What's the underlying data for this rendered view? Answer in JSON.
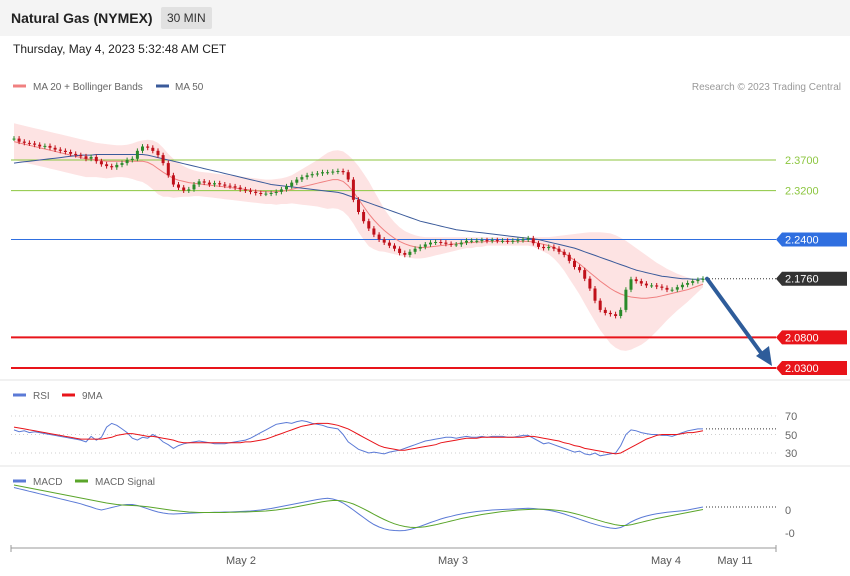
{
  "header": {
    "title": "Natural Gas (NYMEX)",
    "timeframe": "30 MIN",
    "datetime": "Thursday, May 4, 2023 5:32:48 AM CET"
  },
  "legend": {
    "ma20_label": "MA 20 + Bollinger Bands",
    "ma50_label": "MA 50",
    "credit": "Research © 2023 Trading Central"
  },
  "colors": {
    "ma20": "#f08080",
    "band_fill": "#fde3e3",
    "ma50": "#3a5a9a",
    "resistance_green": "#8cc63f",
    "pivot_blue": "#2f6fe0",
    "support_red": "#e8141a",
    "last_price": "#333333",
    "arrow": "#2e5c9a",
    "candle_up": "#2a8a2a",
    "candle_down": "#c0101a",
    "rsi": "#5b7ad6",
    "rsi_ma": "#e8141a",
    "macd": "#5b7ad6",
    "macd_signal": "#5aa52a"
  },
  "levels": [
    {
      "name": "resistance-2",
      "value": "2.3700",
      "kind": "green"
    },
    {
      "name": "resistance-1",
      "value": "2.3200",
      "kind": "green"
    },
    {
      "name": "pivot",
      "value": "2.2400",
      "kind": "blue"
    },
    {
      "name": "last-price",
      "value": "2.1760",
      "kind": "last"
    },
    {
      "name": "support-1",
      "value": "2.0800",
      "kind": "red"
    },
    {
      "name": "support-2",
      "value": "2.0300",
      "kind": "red"
    }
  ],
  "rsi_panel": {
    "rsi_label": "RSI",
    "ma_label": "9MA",
    "ticks": [
      "70",
      "50",
      "30"
    ]
  },
  "macd_panel": {
    "macd_label": "MACD",
    "signal_label": "MACD Signal",
    "ticks": [
      "0",
      "-0"
    ]
  },
  "x_axis": {
    "ticks": [
      "May 2",
      "May 3",
      "May 4",
      "May 11"
    ]
  },
  "chart_data": {
    "type": "candlestick",
    "y_range": [
      2.0,
      2.44
    ],
    "x_ticks": [
      "May 2",
      "May 3",
      "May 4",
      "May 11"
    ],
    "closes": [
      2.405,
      2.4,
      2.398,
      2.397,
      2.395,
      2.392,
      2.393,
      2.39,
      2.387,
      2.385,
      2.383,
      2.38,
      2.378,
      2.376,
      2.372,
      2.375,
      2.368,
      2.363,
      2.36,
      2.358,
      2.362,
      2.365,
      2.37,
      2.372,
      2.385,
      2.392,
      2.39,
      2.385,
      2.378,
      2.365,
      2.345,
      2.33,
      2.325,
      2.32,
      2.322,
      2.33,
      2.335,
      2.333,
      2.33,
      2.332,
      2.33,
      2.328,
      2.327,
      2.325,
      2.322,
      2.32,
      2.318,
      2.316,
      2.315,
      2.315,
      2.316,
      2.318,
      2.322,
      2.327,
      2.333,
      2.338,
      2.342,
      2.345,
      2.347,
      2.348,
      2.35,
      2.35,
      2.351,
      2.352,
      2.35,
      2.338,
      2.305,
      2.285,
      2.27,
      2.258,
      2.248,
      2.24,
      2.235,
      2.23,
      2.225,
      2.218,
      2.215,
      2.22,
      2.225,
      2.228,
      2.232,
      2.235,
      2.236,
      2.235,
      2.233,
      2.232,
      2.232,
      2.235,
      2.238,
      2.238,
      2.238,
      2.239,
      2.238,
      2.239,
      2.238,
      2.238,
      2.237,
      2.238,
      2.239,
      2.24,
      2.242,
      2.234,
      2.228,
      2.226,
      2.228,
      2.225,
      2.22,
      2.215,
      2.205,
      2.195,
      2.19,
      2.176,
      2.16,
      2.14,
      2.125,
      2.12,
      2.118,
      2.115,
      2.125,
      2.158,
      2.175,
      2.172,
      2.168,
      2.165,
      2.165,
      2.163,
      2.161,
      2.158,
      2.158,
      2.162,
      2.166,
      2.169,
      2.172,
      2.174,
      2.176
    ],
    "ma20": [
      2.4,
      2.398,
      2.396,
      2.394,
      2.392,
      2.39,
      2.388,
      2.386,
      2.384,
      2.382,
      2.38,
      2.378,
      2.376,
      2.374,
      2.372,
      2.371,
      2.37,
      2.369,
      2.368,
      2.368,
      2.368,
      2.368,
      2.368,
      2.368,
      2.368,
      2.368,
      2.366,
      2.362,
      2.356,
      2.35,
      2.345,
      2.34,
      2.337,
      2.335,
      2.333,
      2.332,
      2.331,
      2.33,
      2.329,
      2.328,
      2.327,
      2.326,
      2.325,
      2.324,
      2.323,
      2.322,
      2.321,
      2.32,
      2.319,
      2.318,
      2.318,
      2.318,
      2.319,
      2.32,
      2.322,
      2.324,
      2.326,
      2.328,
      2.33,
      2.332,
      2.334,
      2.336,
      2.338,
      2.338,
      2.335,
      2.328,
      2.318,
      2.306,
      2.294,
      2.282,
      2.272,
      2.263,
      2.255,
      2.248,
      2.242,
      2.237,
      2.233,
      2.23,
      2.228,
      2.227,
      2.227,
      2.228,
      2.229,
      2.23,
      2.231,
      2.232,
      2.233,
      2.234,
      2.235,
      2.235,
      2.236,
      2.236,
      2.237,
      2.237,
      2.237,
      2.237,
      2.237,
      2.237,
      2.237,
      2.237,
      2.237,
      2.236,
      2.234,
      2.232,
      2.23,
      2.227,
      2.223,
      2.218,
      2.212,
      2.206,
      2.2,
      2.193,
      2.186,
      2.179,
      2.172,
      2.166,
      2.16,
      2.155,
      2.151,
      2.148,
      2.146,
      2.145,
      2.144,
      2.144,
      2.145,
      2.146,
      2.148,
      2.15,
      2.152,
      2.154,
      2.156,
      2.158,
      2.161,
      2.164,
      2.167
    ],
    "band_upper": [
      2.43,
      2.428,
      2.426,
      2.424,
      2.422,
      2.42,
      2.418,
      2.416,
      2.414,
      2.412,
      2.41,
      2.408,
      2.406,
      2.404,
      2.402,
      2.4,
      2.398,
      2.397,
      2.396,
      2.395,
      2.394,
      2.394,
      2.395,
      2.397,
      2.4,
      2.402,
      2.403,
      2.402,
      2.398,
      2.39,
      2.38,
      2.372,
      2.365,
      2.36,
      2.356,
      2.353,
      2.351,
      2.35,
      2.349,
      2.348,
      2.347,
      2.346,
      2.345,
      2.344,
      2.343,
      2.342,
      2.341,
      2.34,
      2.339,
      2.338,
      2.338,
      2.339,
      2.34,
      2.342,
      2.345,
      2.35,
      2.355,
      2.36,
      2.365,
      2.37,
      2.376,
      2.382,
      2.385,
      2.386,
      2.384,
      2.378,
      2.37,
      2.36,
      2.348,
      2.335,
      2.32,
      2.305,
      2.29,
      2.278,
      2.268,
      2.26,
      2.254,
      2.25,
      2.247,
      2.245,
      2.244,
      2.244,
      2.244,
      2.244,
      2.244,
      2.244,
      2.244,
      2.244,
      2.244,
      2.244,
      2.244,
      2.244,
      2.244,
      2.244,
      2.244,
      2.244,
      2.244,
      2.244,
      2.244,
      2.244,
      2.244,
      2.244,
      2.244,
      2.244,
      2.244,
      2.245,
      2.246,
      2.247,
      2.248,
      2.249,
      2.25,
      2.251,
      2.252,
      2.252,
      2.252,
      2.251,
      2.25,
      2.247,
      2.243,
      2.238,
      2.232,
      2.226,
      2.22,
      2.214,
      2.208,
      2.202,
      2.197,
      2.192,
      2.188,
      2.184,
      2.181,
      2.178,
      2.176,
      2.174,
      2.172
    ],
    "band_lower": [
      2.37,
      2.368,
      2.366,
      2.364,
      2.362,
      2.36,
      2.358,
      2.356,
      2.354,
      2.352,
      2.35,
      2.348,
      2.346,
      2.344,
      2.342,
      2.342,
      2.342,
      2.341,
      2.34,
      2.341,
      2.342,
      2.342,
      2.341,
      2.339,
      2.336,
      2.334,
      2.329,
      2.322,
      2.314,
      2.31,
      2.31,
      2.308,
      2.309,
      2.31,
      2.31,
      2.311,
      2.311,
      2.31,
      2.309,
      2.308,
      2.307,
      2.306,
      2.305,
      2.304,
      2.303,
      2.302,
      2.301,
      2.3,
      2.299,
      2.298,
      2.298,
      2.297,
      2.298,
      2.298,
      2.299,
      2.298,
      2.297,
      2.296,
      2.295,
      2.294,
      2.292,
      2.29,
      2.291,
      2.29,
      2.286,
      2.278,
      2.266,
      2.252,
      2.24,
      2.229,
      2.224,
      2.221,
      2.22,
      2.218,
      2.216,
      2.214,
      2.212,
      2.21,
      2.209,
      2.209,
      2.21,
      2.212,
      2.214,
      2.216,
      2.218,
      2.22,
      2.222,
      2.224,
      2.226,
      2.226,
      2.228,
      2.228,
      2.23,
      2.23,
      2.23,
      2.23,
      2.23,
      2.23,
      2.23,
      2.23,
      2.23,
      2.228,
      2.224,
      2.22,
      2.216,
      2.209,
      2.2,
      2.189,
      2.176,
      2.163,
      2.15,
      2.135,
      2.12,
      2.106,
      2.092,
      2.081,
      2.07,
      2.063,
      2.059,
      2.058,
      2.06,
      2.064,
      2.068,
      2.074,
      2.082,
      2.09,
      2.099,
      2.108,
      2.116,
      2.124,
      2.131,
      2.138,
      2.146,
      2.154,
      2.162
    ],
    "ma50": [
      2.365,
      2.366,
      2.367,
      2.368,
      2.369,
      2.37,
      2.371,
      2.372,
      2.373,
      2.374,
      2.375,
      2.376,
      2.377,
      2.378,
      2.378,
      2.378,
      2.379,
      2.379,
      2.379,
      2.379,
      2.379,
      2.379,
      2.379,
      2.379,
      2.379,
      2.379,
      2.378,
      2.376,
      2.374,
      2.372,
      2.37,
      2.368,
      2.366,
      2.364,
      2.362,
      2.36,
      2.358,
      2.356,
      2.354,
      2.352,
      2.35,
      2.348,
      2.346,
      2.344,
      2.342,
      2.34,
      2.338,
      2.336,
      2.334,
      2.332,
      2.33,
      2.329,
      2.328,
      2.327,
      2.326,
      2.325,
      2.324,
      2.323,
      2.322,
      2.321,
      2.32,
      2.319,
      2.318,
      2.317,
      2.315,
      2.312,
      2.309,
      2.306,
      2.303,
      2.3,
      2.297,
      2.294,
      2.291,
      2.288,
      2.285,
      2.282,
      2.279,
      2.276,
      2.273,
      2.27,
      2.268,
      2.266,
      2.264,
      2.262,
      2.26,
      2.258,
      2.256,
      2.255,
      2.254,
      2.253,
      2.252,
      2.251,
      2.25,
      2.249,
      2.248,
      2.247,
      2.246,
      2.245,
      2.244,
      2.243,
      2.242,
      2.241,
      2.24,
      2.238,
      2.236,
      2.234,
      2.232,
      2.23,
      2.228,
      2.226,
      2.223,
      2.22,
      2.217,
      2.214,
      2.211,
      2.208,
      2.205,
      2.202,
      2.199,
      2.196,
      2.193,
      2.19,
      2.188,
      2.186,
      2.184,
      2.182,
      2.18,
      2.179,
      2.178,
      2.177,
      2.176,
      2.176,
      2.175,
      2.175,
      2.176
    ],
    "rsi": [
      55,
      53,
      54,
      52,
      53,
      52,
      51,
      50,
      49,
      48,
      47,
      46,
      45,
      44,
      42,
      48,
      44,
      47,
      58,
      62,
      60,
      56,
      52,
      46,
      44,
      47,
      46,
      50,
      47,
      42,
      39,
      35,
      38,
      40,
      41,
      42,
      43,
      42,
      41,
      40,
      40,
      40,
      41,
      42,
      43,
      44,
      46,
      49,
      52,
      55,
      58,
      61,
      62,
      63,
      62,
      64,
      65,
      64,
      62,
      61,
      60,
      58,
      57,
      56,
      50,
      42,
      38,
      34,
      32,
      30,
      31,
      30,
      29,
      31,
      32,
      33,
      35,
      37,
      39,
      41,
      43,
      44,
      45,
      46,
      47,
      47,
      46,
      47,
      48,
      47,
      47,
      48,
      47,
      48,
      48,
      48,
      47,
      47,
      48,
      49,
      49,
      46,
      43,
      40,
      41,
      39,
      37,
      35,
      33,
      31,
      32,
      29,
      28,
      30,
      27,
      28,
      29,
      30,
      38,
      50,
      55,
      54,
      52,
      51,
      50,
      50,
      49,
      49,
      48,
      50,
      52,
      54,
      55,
      56,
      56
    ],
    "rsi_ma": [
      58,
      57,
      56,
      55,
      54,
      53,
      52,
      51,
      50,
      49,
      48,
      47,
      46,
      45,
      45,
      45,
      45,
      45,
      46,
      47,
      49,
      50,
      51,
      51,
      50,
      49,
      48,
      48,
      47,
      46,
      45,
      44,
      42,
      41,
      41,
      41,
      41,
      41,
      41,
      41,
      41,
      41,
      41,
      41,
      41,
      42,
      42,
      43,
      44,
      45,
      47,
      49,
      51,
      53,
      55,
      57,
      59,
      60,
      61,
      62,
      62,
      62,
      61,
      60,
      58,
      56,
      53,
      50,
      47,
      44,
      41,
      38,
      36,
      35,
      34,
      33,
      33,
      34,
      35,
      36,
      37,
      38,
      39,
      41,
      42,
      43,
      44,
      45,
      46,
      46,
      46,
      47,
      47,
      47,
      47,
      47,
      47,
      47,
      47,
      47,
      48,
      48,
      47,
      46,
      45,
      44,
      43,
      41,
      40,
      38,
      37,
      35,
      34,
      33,
      32,
      31,
      30,
      29,
      30,
      33,
      36,
      39,
      42,
      45,
      47,
      49,
      50,
      50,
      50,
      50,
      51,
      52,
      52,
      53,
      54
    ],
    "macd": [
      0.9,
      0.85,
      0.8,
      0.75,
      0.7,
      0.65,
      0.6,
      0.55,
      0.5,
      0.45,
      0.4,
      0.35,
      0.3,
      0.25,
      0.18,
      0.12,
      0.05,
      0.0,
      0.05,
      0.1,
      0.15,
      0.2,
      0.22,
      0.22,
      0.18,
      0.12,
      0.05,
      -0.02,
      -0.08,
      -0.12,
      -0.15,
      -0.16,
      -0.15,
      -0.14,
      -0.13,
      -0.12,
      -0.11,
      -0.1,
      -0.1,
      -0.09,
      -0.09,
      -0.08,
      -0.08,
      -0.07,
      -0.06,
      -0.05,
      -0.04,
      -0.02,
      0.0,
      0.03,
      0.06,
      0.1,
      0.14,
      0.18,
      0.22,
      0.26,
      0.3,
      0.34,
      0.38,
      0.42,
      0.45,
      0.47,
      0.44,
      0.38,
      0.28,
      0.15,
      0.0,
      -0.15,
      -0.3,
      -0.45,
      -0.58,
      -0.68,
      -0.75,
      -0.8,
      -0.82,
      -0.83,
      -0.82,
      -0.78,
      -0.72,
      -0.65,
      -0.58,
      -0.5,
      -0.43,
      -0.36,
      -0.3,
      -0.25,
      -0.2,
      -0.16,
      -0.12,
      -0.09,
      -0.06,
      -0.04,
      -0.02,
      0.0,
      0.01,
      0.02,
      0.03,
      0.04,
      0.05,
      0.06,
      0.07,
      0.06,
      0.04,
      0.02,
      -0.01,
      -0.05,
      -0.1,
      -0.16,
      -0.23,
      -0.3,
      -0.37,
      -0.44,
      -0.51,
      -0.57,
      -0.63,
      -0.68,
      -0.72,
      -0.74,
      -0.7,
      -0.6,
      -0.48,
      -0.38,
      -0.3,
      -0.24,
      -0.19,
      -0.15,
      -0.12,
      -0.09,
      -0.07,
      -0.05,
      -0.03,
      0.0,
      0.04,
      0.08,
      0.12
    ],
    "macd_signal": [
      1.0,
      0.96,
      0.92,
      0.88,
      0.84,
      0.8,
      0.76,
      0.72,
      0.68,
      0.64,
      0.6,
      0.56,
      0.52,
      0.48,
      0.44,
      0.4,
      0.36,
      0.32,
      0.28,
      0.25,
      0.22,
      0.2,
      0.19,
      0.18,
      0.17,
      0.15,
      0.13,
      0.1,
      0.07,
      0.04,
      0.01,
      -0.02,
      -0.04,
      -0.06,
      -0.08,
      -0.09,
      -0.1,
      -0.1,
      -0.1,
      -0.1,
      -0.1,
      -0.1,
      -0.09,
      -0.09,
      -0.08,
      -0.08,
      -0.07,
      -0.06,
      -0.05,
      -0.04,
      -0.02,
      0.0,
      0.03,
      0.06,
      0.09,
      0.13,
      0.17,
      0.21,
      0.25,
      0.29,
      0.33,
      0.36,
      0.38,
      0.38,
      0.36,
      0.31,
      0.24,
      0.15,
      0.05,
      -0.06,
      -0.17,
      -0.28,
      -0.38,
      -0.47,
      -0.55,
      -0.61,
      -0.66,
      -0.69,
      -0.7,
      -0.69,
      -0.67,
      -0.63,
      -0.59,
      -0.54,
      -0.49,
      -0.44,
      -0.39,
      -0.34,
      -0.3,
      -0.26,
      -0.22,
      -0.18,
      -0.15,
      -0.12,
      -0.09,
      -0.06,
      -0.04,
      -0.02,
      0.0,
      0.01,
      0.02,
      0.03,
      0.03,
      0.03,
      0.02,
      0.0,
      -0.02,
      -0.05,
      -0.09,
      -0.14,
      -0.19,
      -0.25,
      -0.31,
      -0.37,
      -0.43,
      -0.49,
      -0.54,
      -0.59,
      -0.62,
      -0.62,
      -0.59,
      -0.54,
      -0.49,
      -0.44,
      -0.39,
      -0.34,
      -0.3,
      -0.26,
      -0.22,
      -0.18,
      -0.14,
      -0.1,
      -0.06,
      -0.02,
      0.02
    ]
  }
}
